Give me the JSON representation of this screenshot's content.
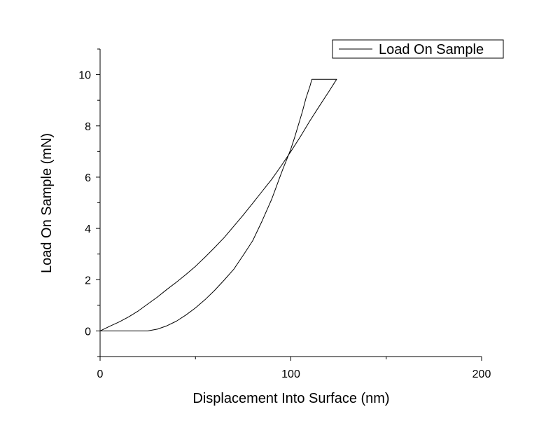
{
  "chart_data": {
    "type": "line",
    "xlabel": "Displacement Into Surface (nm)",
    "ylabel": "Load On Sample (mN)",
    "xlim": [
      0,
      200
    ],
    "ylim": [
      -1,
      11
    ],
    "x_ticks": [
      0,
      100,
      200
    ],
    "y_ticks": [
      0,
      2,
      4,
      6,
      8,
      10
    ],
    "x_minor_step": 50,
    "y_minor_step": 1,
    "grid": false,
    "legend_position": "top-right",
    "line_color": "#000000",
    "series": [
      {
        "name": "Load On Sample",
        "x": [
          0,
          5,
          10,
          15,
          20,
          25,
          30,
          35,
          40,
          45,
          50,
          55,
          60,
          65,
          70,
          75,
          80,
          85,
          90,
          95,
          100,
          105,
          110,
          115,
          120,
          124,
          122,
          118,
          114,
          111,
          110,
          108,
          106,
          104,
          102,
          100,
          98,
          96,
          94,
          92,
          90,
          85,
          80,
          75,
          70,
          65,
          60,
          55,
          50,
          45,
          40,
          35,
          30,
          25,
          20,
          15,
          13,
          10,
          5,
          0
        ],
        "y": [
          0,
          0.18,
          0.35,
          0.55,
          0.78,
          1.05,
          1.32,
          1.62,
          1.9,
          2.2,
          2.52,
          2.88,
          3.25,
          3.64,
          4.08,
          4.52,
          4.98,
          5.45,
          5.92,
          6.45,
          7.0,
          7.58,
          8.2,
          8.78,
          9.35,
          9.82,
          9.82,
          9.82,
          9.82,
          9.82,
          9.55,
          9.1,
          8.55,
          8.05,
          7.55,
          7.1,
          6.72,
          6.35,
          5.95,
          5.55,
          5.15,
          4.3,
          3.52,
          2.95,
          2.4,
          1.98,
          1.58,
          1.22,
          0.9,
          0.62,
          0.38,
          0.2,
          0.07,
          0.0,
          0.0,
          0.0,
          0.0,
          0.0,
          0.0,
          0.0
        ]
      }
    ]
  }
}
